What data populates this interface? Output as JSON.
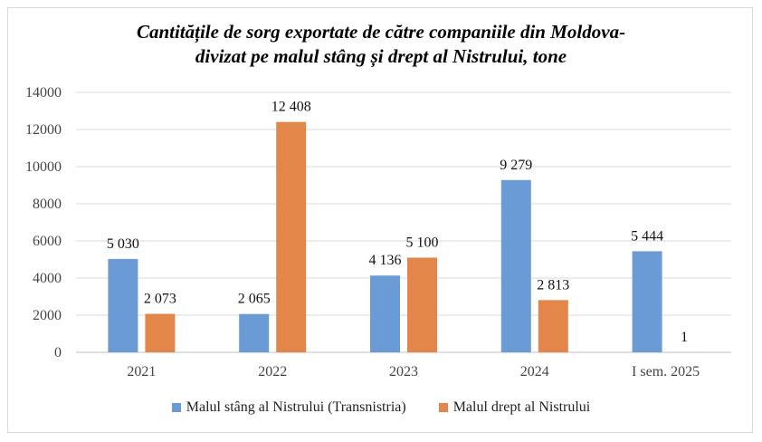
{
  "chart_data": {
    "type": "bar",
    "title_line1": "Cantitățile de sorg exportate de către companiile din Moldova-",
    "title_line2": "divizat pe malul stâng și drept al Nistrului, tone",
    "categories": [
      "2021",
      "2022",
      "2023",
      "2024",
      "I sem. 2025"
    ],
    "series": [
      {
        "name": "Malul stâng al Nistrului (Transnistria)",
        "color": "#6a9bd4",
        "values": [
          5030,
          2065,
          4136,
          9279,
          5444
        ],
        "labels": [
          "5 030",
          "2 065",
          "4 136",
          "9 279",
          "5 444"
        ]
      },
      {
        "name": "Malul drept al Nistrului",
        "color": "#e3864a",
        "values": [
          2073,
          12408,
          5100,
          2813,
          1
        ],
        "labels": [
          "2 073",
          "12 408",
          "5 100",
          "2 813",
          "1"
        ]
      }
    ],
    "ylim": [
      0,
      14000
    ],
    "yticks": [
      "0",
      "2000",
      "4000",
      "6000",
      "8000",
      "10000",
      "12000",
      "14000"
    ],
    "grid": true,
    "legend": "bottom"
  }
}
